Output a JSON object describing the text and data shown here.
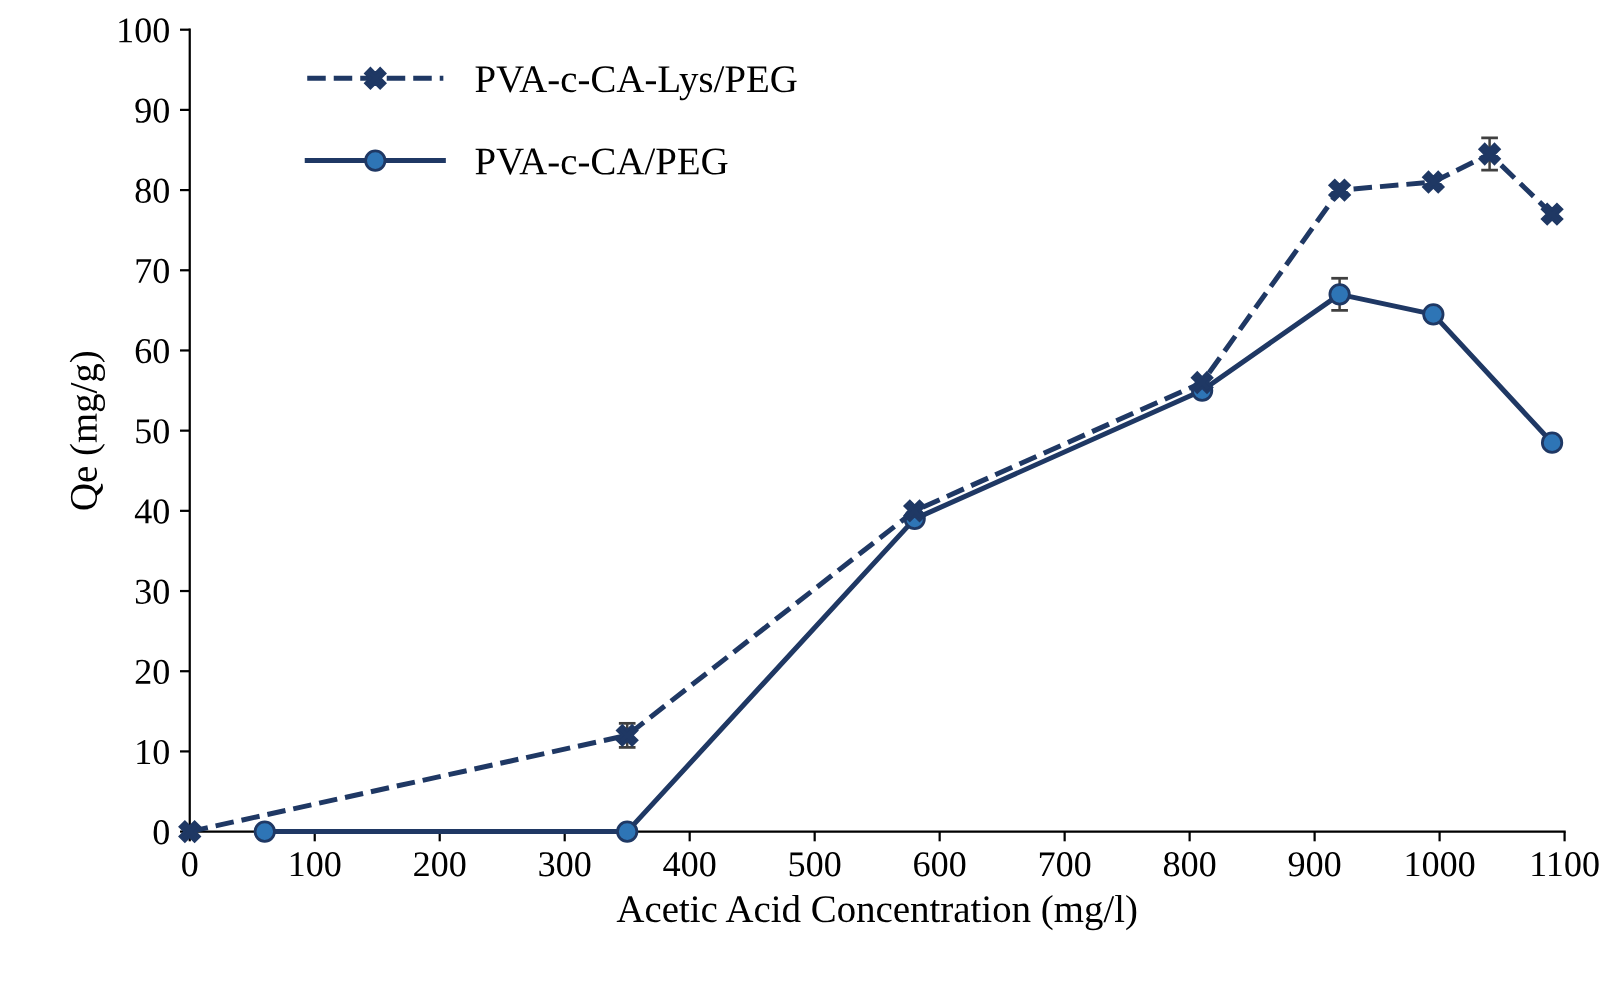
{
  "chart_data": {
    "type": "line",
    "xlabel": "Acetic Acid Concentration (mg/l)",
    "ylabel": "Qe (mg/g)",
    "xlim": [
      0,
      1100
    ],
    "xticks": [
      0,
      100,
      200,
      300,
      400,
      500,
      600,
      700,
      800,
      900,
      1000,
      1100
    ],
    "ylim": [
      0,
      100
    ],
    "yticks": [
      0,
      10,
      20,
      30,
      40,
      50,
      60,
      70,
      80,
      90,
      100
    ],
    "grid": false,
    "legend": "top left",
    "series": [
      {
        "name": "PVA-c-CA-Lys/PEG",
        "color": "#1f3864",
        "marker": "cross",
        "line_style": "dashed",
        "x": [
          0,
          350,
          580,
          810,
          920,
          995,
          1040,
          1090
        ],
        "values": [
          0,
          12,
          40,
          56,
          80,
          81,
          84.5,
          77
        ],
        "errors": [
          null,
          1.5,
          null,
          null,
          null,
          null,
          2,
          null
        ]
      },
      {
        "name": "PVA-c-CA/PEG",
        "color": "#1f3864",
        "marker": "circle",
        "line_style": "solid",
        "x": [
          60,
          350,
          580,
          810,
          920,
          995,
          1090
        ],
        "values": [
          0,
          0,
          39,
          55,
          67,
          64.5,
          48.5
        ],
        "errors": [
          null,
          null,
          null,
          null,
          2,
          null,
          null
        ]
      }
    ]
  }
}
